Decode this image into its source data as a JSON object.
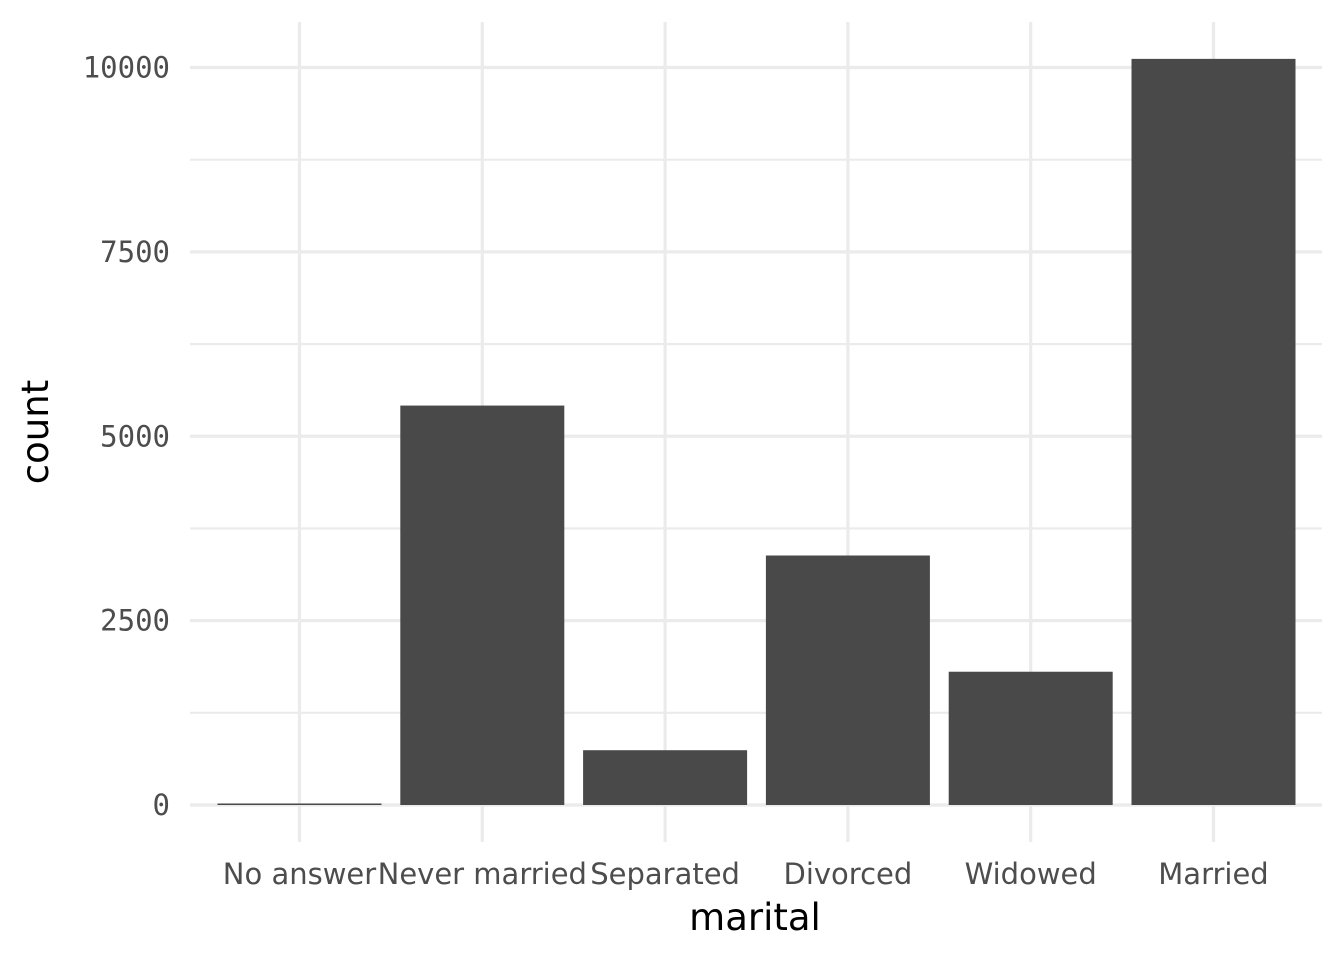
{
  "chart_data": {
    "type": "bar",
    "categories": [
      "No answer",
      "Never married",
      "Separated",
      "Divorced",
      "Widowed",
      "Married"
    ],
    "values": [
      17,
      5416,
      743,
      3383,
      1807,
      10117
    ],
    "xlabel": "marital",
    "ylabel": "count",
    "ylim": [
      0,
      10600
    ],
    "y_ticks": [
      0,
      2500,
      5000,
      7500,
      10000
    ],
    "y_tick_labels": [
      "0",
      "2500",
      "5000",
      "7500",
      "10000"
    ],
    "grid": true,
    "legend": "none",
    "colors": {
      "bar": "#494949",
      "grid_major": "#ebebeb",
      "grid_minor": "#ebebeb",
      "background": "#ffffff"
    }
  }
}
